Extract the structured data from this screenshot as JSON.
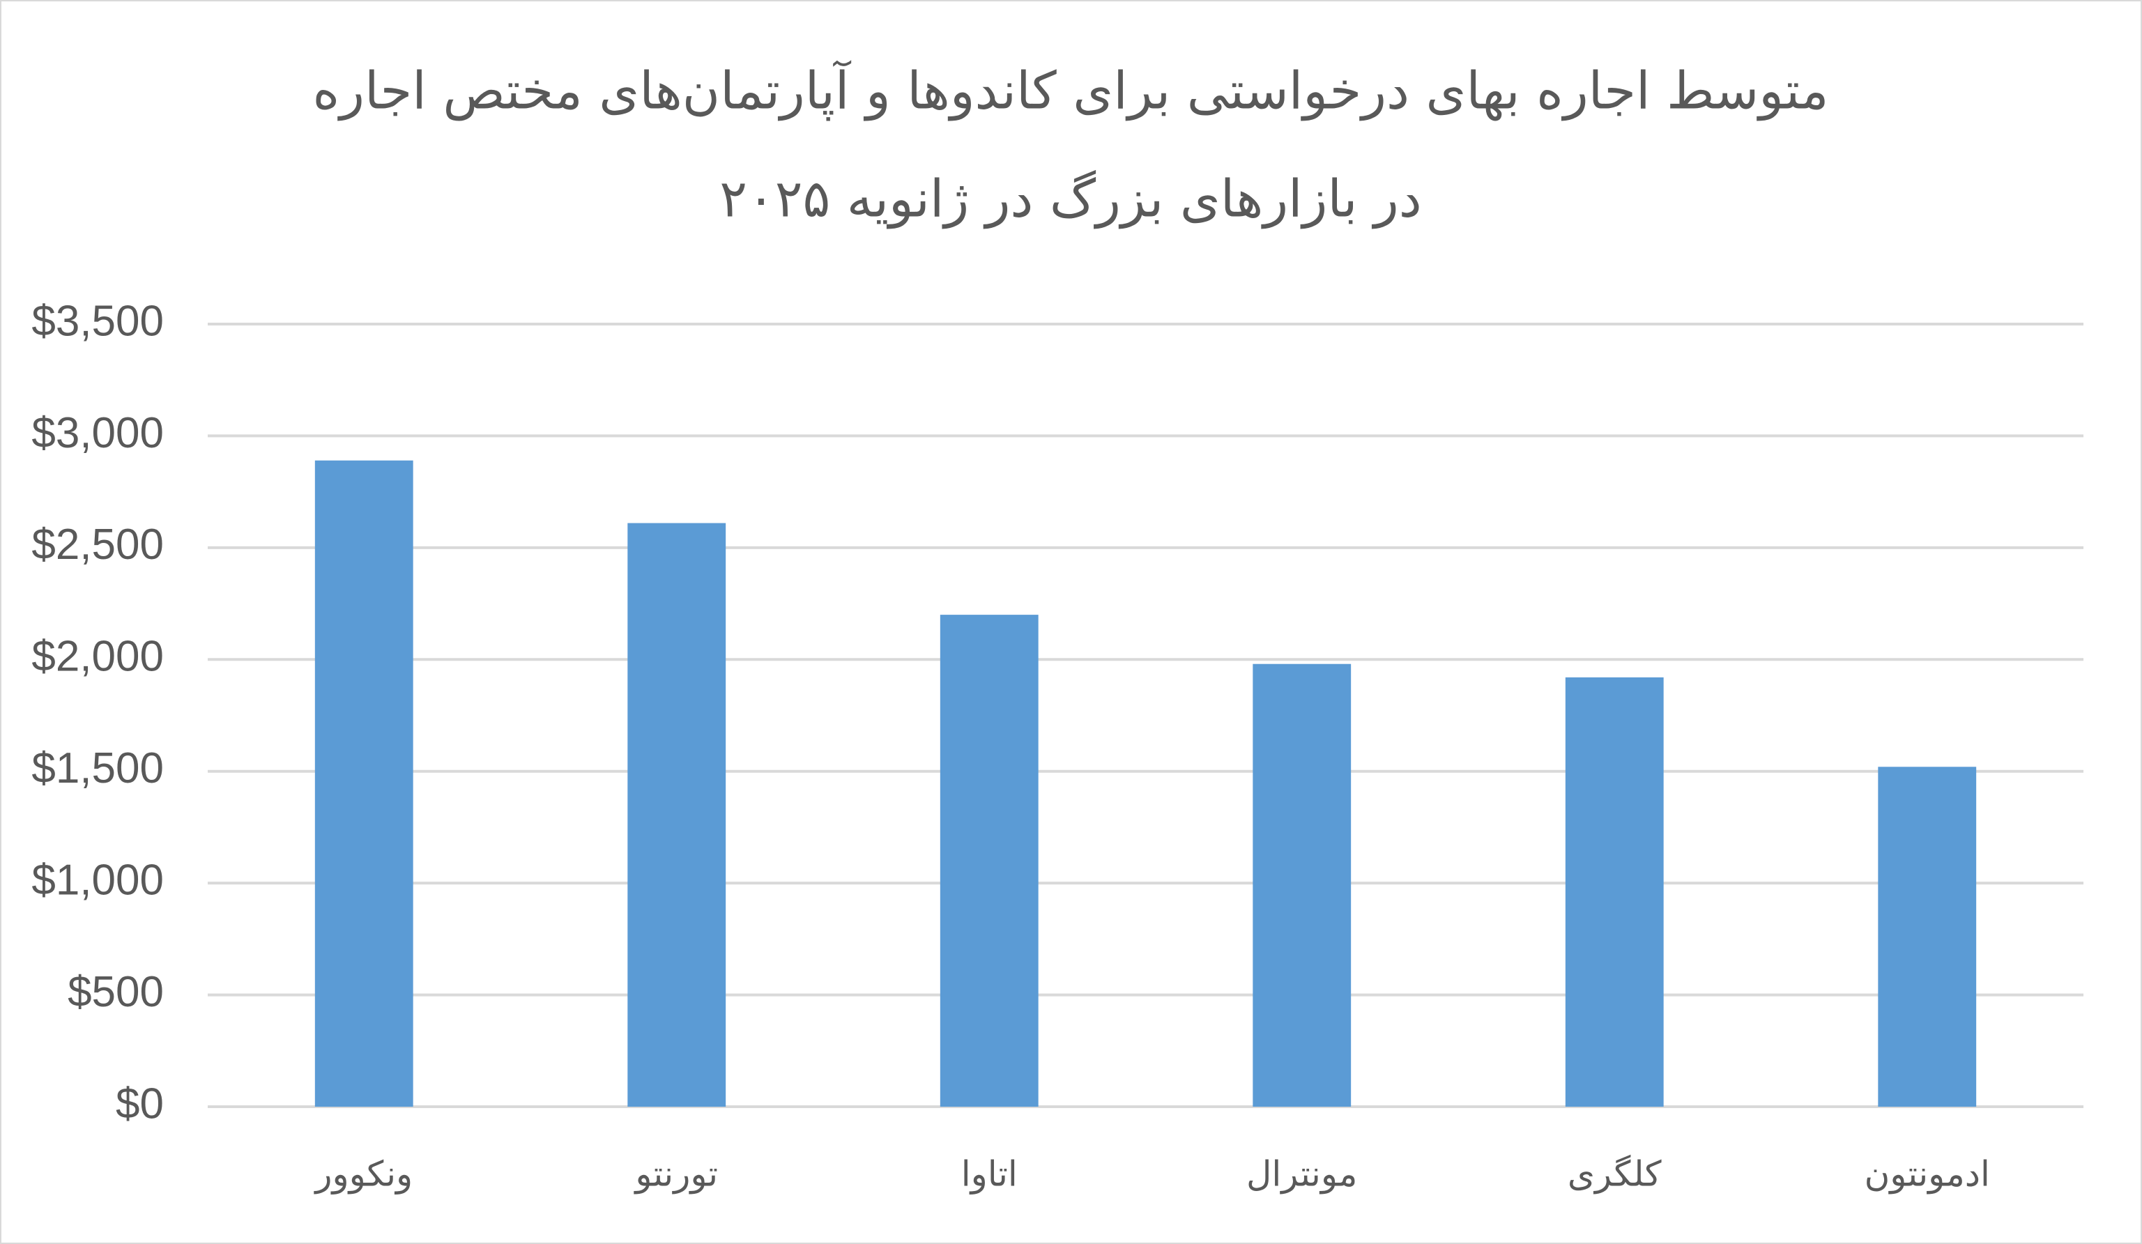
{
  "chart_data": {
    "type": "bar",
    "title": [
      "متوسط اجاره بهای درخواستی برای کاندوها و آپارتمان‌های مختص اجاره",
      "در بازارهای بزرگ در ژانویه ۲۰۲۵"
    ],
    "categories": [
      "ونکوور",
      "تورنتو",
      "اتاوا",
      "مونترال",
      "کلگری",
      "ادمونتون"
    ],
    "values": [
      2890,
      2610,
      2200,
      1980,
      1920,
      1520
    ],
    "color": "#5b9bd5",
    "ylim": [
      0,
      3500
    ],
    "yticks": [
      {
        "value": 0,
        "label": "$0"
      },
      {
        "value": 500,
        "label": "$500"
      },
      {
        "value": 1000,
        "label": "$1,000"
      },
      {
        "value": 1500,
        "label": "$1,500"
      },
      {
        "value": 2000,
        "label": "$2,000"
      },
      {
        "value": 2500,
        "label": "$2,500"
      },
      {
        "value": 3000,
        "label": "$3,000"
      },
      {
        "value": 3500,
        "label": "$3,500"
      }
    ],
    "grid": true
  }
}
